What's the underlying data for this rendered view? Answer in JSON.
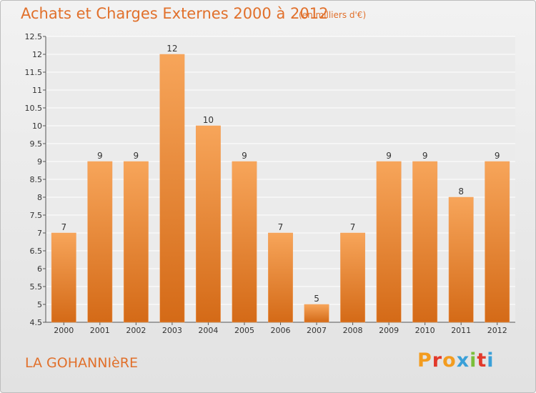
{
  "header": {
    "title": "Achats et Charges Externes 2000 à 2012",
    "subtitle": "(en milliers d'€)"
  },
  "footer": {
    "commune": "LA GOHANNIèRE",
    "logo_letters": [
      "P",
      "r",
      "o",
      "x",
      "i",
      "t",
      "i"
    ],
    "logo_colors": [
      "#f39c1f",
      "#e2392b",
      "#f39c1f",
      "#3aa0d8",
      "#7bbf3a",
      "#e2392b",
      "#3aa0d8"
    ]
  },
  "chart_data": {
    "type": "bar",
    "categories": [
      "2000",
      "2001",
      "2002",
      "2003",
      "2004",
      "2005",
      "2006",
      "2007",
      "2008",
      "2009",
      "2010",
      "2011",
      "2012"
    ],
    "values": [
      7,
      9,
      9,
      12,
      10,
      9,
      7,
      5,
      7,
      9,
      9,
      8,
      9
    ],
    "ylim": [
      4.5,
      12.5
    ],
    "yticks": [
      "4.5",
      "5",
      "5.5",
      "6",
      "6.5",
      "7",
      "7.5",
      "8",
      "8.5",
      "9",
      "9.5",
      "10",
      "10.5",
      "11",
      "11.5",
      "12",
      "12.5"
    ],
    "grid": true,
    "bar_color_top": "#f7a55a",
    "bar_color_bottom": "#d46a17"
  }
}
